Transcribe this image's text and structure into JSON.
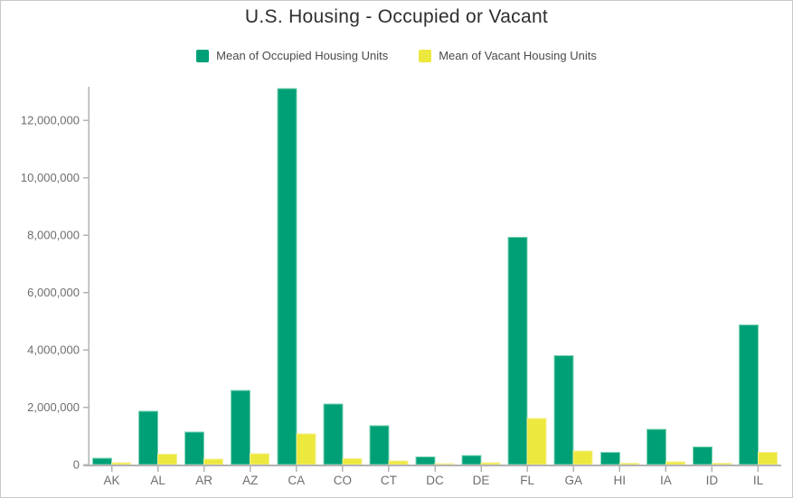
{
  "chart": {
    "title": "U.S. Housing - Occupied or Vacant"
  },
  "chart_data": {
    "type": "bar",
    "title": "U.S. Housing - Occupied or Vacant",
    "categories": [
      "AK",
      "AL",
      "AR",
      "AZ",
      "CA",
      "CO",
      "CT",
      "DC",
      "DE",
      "FL",
      "GA",
      "HI",
      "IA",
      "ID",
      "IL"
    ],
    "series": [
      {
        "name": "Mean of Occupied Housing Units",
        "color": "#00a077",
        "edge_color": "#7fd4b6",
        "values": [
          220000,
          1860000,
          1130000,
          2590000,
          13100000,
          2110000,
          1350000,
          260000,
          320000,
          7930000,
          3800000,
          420000,
          1230000,
          610000,
          4870000
        ]
      },
      {
        "name": "Mean of Vacant Housing Units",
        "color": "#ece83d",
        "edge_color": "#f4f096",
        "values": [
          60000,
          370000,
          190000,
          380000,
          1070000,
          200000,
          125000,
          30000,
          60000,
          1600000,
          465000,
          55000,
          95000,
          55000,
          430000
        ]
      }
    ],
    "xlabel": "",
    "ylabel": "",
    "ylim": [
      0,
      13170000
    ],
    "y_tick_step": 2000000,
    "y_tick_labels": [
      "0",
      "2,000,000",
      "4,000,000",
      "6,000,000",
      "8,000,000",
      "10,000,000",
      "12,000,000"
    ],
    "grid": false,
    "legend_position": "top"
  },
  "colors": {
    "background": "#ffffff",
    "border": "#c9c9c9",
    "axis_line": "#b3b3b3",
    "tick_label": "#6e6e6e",
    "title_text": "#2e2e2e",
    "legend_text": "#4a4a4a"
  }
}
